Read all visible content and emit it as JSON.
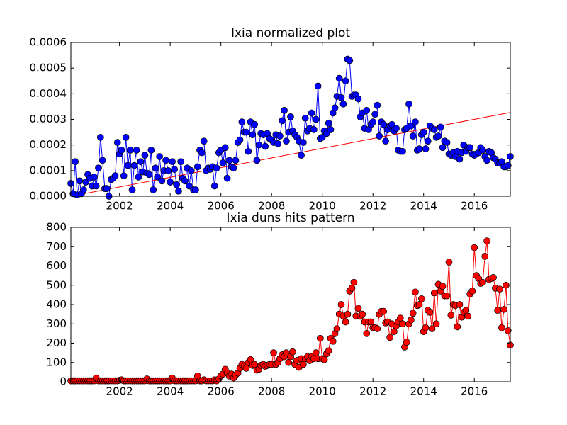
{
  "chart_data": [
    {
      "type": "line",
      "title": "Ixia normalized plot",
      "x": [
        2000.08,
        2000.17,
        2000.25,
        2000.33,
        2000.42,
        2000.5,
        2000.58,
        2000.67,
        2000.75,
        2000.83,
        2000.92,
        2001,
        2001.08,
        2001.17,
        2001.25,
        2001.33,
        2001.42,
        2001.5,
        2001.58,
        2001.67,
        2001.75,
        2001.83,
        2001.92,
        2002,
        2002.08,
        2002.17,
        2002.25,
        2002.33,
        2002.42,
        2002.5,
        2002.58,
        2002.67,
        2002.75,
        2002.83,
        2002.92,
        2003,
        2003.08,
        2003.17,
        2003.25,
        2003.33,
        2003.42,
        2003.5,
        2003.58,
        2003.67,
        2003.75,
        2003.83,
        2003.92,
        2004,
        2004.08,
        2004.17,
        2004.25,
        2004.33,
        2004.42,
        2004.5,
        2004.58,
        2004.67,
        2004.75,
        2004.83,
        2004.92,
        2005,
        2005.08,
        2005.17,
        2005.25,
        2005.33,
        2005.42,
        2005.5,
        2005.58,
        2005.67,
        2005.75,
        2005.83,
        2005.92,
        2006,
        2006.08,
        2006.17,
        2006.25,
        2006.33,
        2006.42,
        2006.5,
        2006.58,
        2006.67,
        2006.75,
        2006.83,
        2006.92,
        2007,
        2007.08,
        2007.17,
        2007.25,
        2007.33,
        2007.42,
        2007.5,
        2007.58,
        2007.67,
        2007.75,
        2007.83,
        2007.92,
        2008,
        2008.08,
        2008.17,
        2008.25,
        2008.33,
        2008.42,
        2008.5,
        2008.58,
        2008.67,
        2008.75,
        2008.83,
        2008.92,
        2009,
        2009.08,
        2009.17,
        2009.25,
        2009.33,
        2009.42,
        2009.5,
        2009.58,
        2009.67,
        2009.75,
        2009.83,
        2009.92,
        2010,
        2010.08,
        2010.17,
        2010.25,
        2010.33,
        2010.42,
        2010.5,
        2010.58,
        2010.67,
        2010.75,
        2010.83,
        2010.92,
        2011,
        2011.08,
        2011.17,
        2011.25,
        2011.33,
        2011.42,
        2011.5,
        2011.58,
        2011.67,
        2011.75,
        2011.83,
        2011.92,
        2012,
        2012.08,
        2012.17,
        2012.25,
        2012.33,
        2012.42,
        2012.5,
        2012.58,
        2012.67,
        2012.75,
        2012.83,
        2012.92,
        2013,
        2013.08,
        2013.17,
        2013.25,
        2013.33,
        2013.42,
        2013.5,
        2013.58,
        2013.67,
        2013.75,
        2013.83,
        2013.92,
        2014,
        2014.08,
        2014.17,
        2014.25,
        2014.33,
        2014.42,
        2014.5,
        2014.58,
        2014.67,
        2014.75,
        2014.83,
        2014.92,
        2015,
        2015.08,
        2015.17,
        2015.25,
        2015.33,
        2015.42,
        2015.5,
        2015.58,
        2015.67,
        2015.75,
        2015.83,
        2015.92,
        2016,
        2016.08,
        2016.17,
        2016.25,
        2016.33,
        2016.42,
        2016.5,
        2016.58,
        2016.67,
        2016.75,
        2016.83,
        2016.92,
        2017,
        2017.08,
        2017.17,
        2017.25,
        2017.33,
        2017.42
      ],
      "values": [
        5e-05,
        1e-05,
        0.000135,
        5e-06,
        6e-05,
        1e-05,
        2.5e-05,
        5.5e-05,
        8.5e-05,
        7e-05,
        4e-05,
        7.5e-05,
        4e-05,
        0.00011,
        0.00023,
        0.00014,
        3e-05,
        3e-05,
        0,
        6.5e-05,
        7e-05,
        8e-05,
        0.00021,
        0.000165,
        0.00018,
        8e-05,
        0.00023,
        0.00012,
        0.00018,
        2.5e-05,
        0.00012,
        0.00018,
        7.5e-05,
        0.000135,
        9.5e-05,
        0.00016,
        9e-05,
        8.5e-05,
        0.00018,
        2.5e-05,
        0.00011,
        7.5e-05,
        0.000155,
        6e-05,
        0.0001,
        0.00014,
        0.0001,
        5.5e-05,
        0.000135,
        0.000105,
        4.5e-05,
        2e-05,
        0.000135,
        7e-05,
        6e-05,
        0.00011,
        4e-05,
        0.0001,
        2.5e-05,
        2.5e-05,
        0.000115,
        0.00018,
        0.00017,
        0.000215,
        0.0001,
        0.00011,
        0.000105,
        0.000115,
        4e-05,
        0.00011,
        0.00017,
        0.00018,
        0.00013,
        0.00019,
        7e-05,
        0.00014,
        0.000115,
        0.00011,
        0.00014,
        0.00021,
        0.00022,
        0.00029,
        0.00025,
        0.00025,
        0.000175,
        0.00029,
        0.00024,
        0.00028,
        0.00014,
        0.0002,
        0.000245,
        0.00024,
        0.000195,
        0.000245,
        0.000225,
        0.00022,
        0.00021,
        0.00024,
        0.000205,
        0.000235,
        0.000295,
        0.000335,
        0.000215,
        0.00025,
        0.00031,
        0.000255,
        0.00024,
        0.00023,
        0.000215,
        0.00016,
        0.00021,
        0.000305,
        0.000255,
        0.000265,
        0.000325,
        0.00026,
        0.0003,
        0.00043,
        0.000225,
        0.00023,
        0.000255,
        0.000245,
        0.000285,
        0.00026,
        0.000325,
        0.000345,
        0.00039,
        0.00046,
        0.000385,
        0.00036,
        0.00045,
        0.000535,
        0.00053,
        0.00039,
        0.000395,
        0.000395,
        0.00038,
        0.00031,
        0.000325,
        0.000265,
        0.000335,
        0.00026,
        0.00028,
        0.00029,
        0.00032,
        0.000355,
        0.000235,
        0.00029,
        0.00028,
        0.000215,
        0.00026,
        0.000275,
        0.00028,
        0.000255,
        0.000265,
        0.00018,
        0.000175,
        0.000175,
        0.00026,
        0.000265,
        0.00036,
        0.000275,
        0.000235,
        0.00029,
        0.00018,
        0.000185,
        0.00024,
        0.00025,
        0.000185,
        0.000215,
        0.000275,
        0.000265,
        0.00026,
        0.00023,
        0.000235,
        0.00027,
        0.00019,
        0.000215,
        0.00021,
        0.000165,
        0.00016,
        0.00017,
        0.000155,
        0.000175,
        0.000145,
        0.00017,
        0.0002,
        0.000175,
        0.00019,
        0.00019,
        0.000165,
        0.00016,
        0.000165,
        0.00017,
        0.00019,
        0.00018,
        0.000155,
        0.00014,
        0.000175,
        0.00017,
        0.00015,
        0.000145,
        0.00013,
        0.00013,
        0.000135,
        0.000115,
        0.000115,
        0.00012,
        0.000155
      ],
      "color": "#0000ff",
      "fit": {
        "x": [
          2000.08,
          2017.42
        ],
        "values": [
          0,
          0.000327
        ],
        "color": "#ff0000"
      },
      "xlim": [
        2000.08,
        2017.42
      ],
      "xticks": [
        2002,
        2004,
        2006,
        2008,
        2010,
        2012,
        2014,
        2016
      ],
      "ylim": [
        0,
        0.0006
      ],
      "yticks": [
        {
          "value": 0,
          "label": "0.0000"
        },
        0.0001,
        0.0002,
        0.0003,
        0.0004,
        0.0005,
        0.0006
      ]
    },
    {
      "type": "line",
      "title": "Ixia duns hits pattern",
      "x": [
        2000.08,
        2000.17,
        2000.25,
        2000.33,
        2000.42,
        2000.5,
        2000.58,
        2000.67,
        2000.75,
        2000.83,
        2000.92,
        2001,
        2001.08,
        2001.17,
        2001.25,
        2001.33,
        2001.42,
        2001.5,
        2001.58,
        2001.67,
        2001.75,
        2001.83,
        2001.92,
        2002,
        2002.08,
        2002.17,
        2002.25,
        2002.33,
        2002.42,
        2002.5,
        2002.58,
        2002.67,
        2002.75,
        2002.83,
        2002.92,
        2003,
        2003.08,
        2003.17,
        2003.25,
        2003.33,
        2003.42,
        2003.5,
        2003.58,
        2003.67,
        2003.75,
        2003.83,
        2003.92,
        2004,
        2004.08,
        2004.17,
        2004.25,
        2004.33,
        2004.42,
        2004.5,
        2004.58,
        2004.67,
        2004.75,
        2004.83,
        2004.92,
        2005,
        2005.08,
        2005.17,
        2005.25,
        2005.33,
        2005.42,
        2005.5,
        2005.58,
        2005.67,
        2005.75,
        2005.83,
        2005.92,
        2006,
        2006.08,
        2006.17,
        2006.25,
        2006.33,
        2006.42,
        2006.5,
        2006.58,
        2006.67,
        2006.75,
        2006.83,
        2006.92,
        2007,
        2007.08,
        2007.17,
        2007.25,
        2007.33,
        2007.42,
        2007.5,
        2007.58,
        2007.67,
        2007.75,
        2007.83,
        2007.92,
        2008,
        2008.08,
        2008.17,
        2008.25,
        2008.33,
        2008.42,
        2008.5,
        2008.58,
        2008.67,
        2008.75,
        2008.83,
        2008.92,
        2009,
        2009.08,
        2009.17,
        2009.25,
        2009.33,
        2009.42,
        2009.5,
        2009.58,
        2009.67,
        2009.75,
        2009.83,
        2009.92,
        2010,
        2010.08,
        2010.17,
        2010.25,
        2010.33,
        2010.42,
        2010.5,
        2010.58,
        2010.67,
        2010.75,
        2010.83,
        2010.92,
        2011,
        2011.08,
        2011.17,
        2011.25,
        2011.33,
        2011.42,
        2011.5,
        2011.58,
        2011.67,
        2011.75,
        2011.83,
        2011.92,
        2012,
        2012.08,
        2012.17,
        2012.25,
        2012.33,
        2012.42,
        2012.5,
        2012.58,
        2012.67,
        2012.75,
        2012.83,
        2012.92,
        2013,
        2013.08,
        2013.17,
        2013.25,
        2013.33,
        2013.42,
        2013.5,
        2013.58,
        2013.67,
        2013.75,
        2013.83,
        2013.92,
        2014,
        2014.08,
        2014.17,
        2014.25,
        2014.33,
        2014.42,
        2014.5,
        2014.58,
        2014.67,
        2014.75,
        2014.83,
        2014.92,
        2015,
        2015.08,
        2015.17,
        2015.25,
        2015.33,
        2015.42,
        2015.5,
        2015.58,
        2015.67,
        2015.75,
        2015.83,
        2015.92,
        2016,
        2016.08,
        2016.17,
        2016.25,
        2016.33,
        2016.42,
        2016.5,
        2016.58,
        2016.67,
        2016.75,
        2016.83,
        2016.92,
        2017,
        2017.08,
        2017.17,
        2017.25,
        2017.33,
        2017.42
      ],
      "values": [
        5,
        5,
        5,
        5,
        5,
        5,
        5,
        5,
        5,
        5,
        5,
        5,
        20,
        5,
        5,
        5,
        5,
        5,
        5,
        5,
        5,
        5,
        5,
        8,
        10,
        5,
        5,
        5,
        5,
        5,
        5,
        5,
        5,
        5,
        5,
        5,
        15,
        5,
        5,
        5,
        5,
        5,
        5,
        5,
        5,
        5,
        5,
        5,
        20,
        5,
        5,
        5,
        5,
        5,
        5,
        5,
        5,
        5,
        5,
        5,
        30,
        5,
        5,
        10,
        5,
        5,
        5,
        5,
        10,
        5,
        15,
        30,
        40,
        65,
        45,
        30,
        40,
        20,
        35,
        45,
        70,
        90,
        80,
        70,
        100,
        115,
        85,
        90,
        60,
        65,
        85,
        90,
        80,
        85,
        90,
        90,
        150,
        90,
        100,
        120,
        140,
        130,
        150,
        100,
        130,
        155,
        90,
        110,
        75,
        120,
        90,
        120,
        130,
        110,
        130,
        120,
        150,
        120,
        225,
        120,
        115,
        145,
        160,
        225,
        210,
        250,
        275,
        350,
        400,
        340,
        310,
        350,
        470,
        485,
        515,
        340,
        380,
        340,
        350,
        310,
        250,
        310,
        310,
        280,
        280,
        275,
        350,
        365,
        365,
        305,
        310,
        230,
        300,
        260,
        290,
        310,
        330,
        300,
        180,
        205,
        300,
        320,
        355,
        465,
        395,
        400,
        430,
        260,
        280,
        370,
        360,
        275,
        460,
        300,
        505,
        470,
        495,
        445,
        445,
        620,
        345,
        400,
        395,
        285,
        400,
        335,
        360,
        370,
        340,
        455,
        470,
        695,
        550,
        535,
        510,
        515,
        650,
        730,
        530,
        535,
        540,
        485,
        370,
        480,
        280,
        375,
        500,
        265,
        190
      ],
      "color": "#ff0000",
      "xlim": [
        2000.08,
        2017.42
      ],
      "xticks": [
        2002,
        2004,
        2006,
        2008,
        2010,
        2012,
        2014,
        2016
      ],
      "ylim": [
        0,
        800
      ],
      "yticks": [
        0,
        100,
        200,
        300,
        400,
        500,
        600,
        700,
        800
      ]
    }
  ]
}
